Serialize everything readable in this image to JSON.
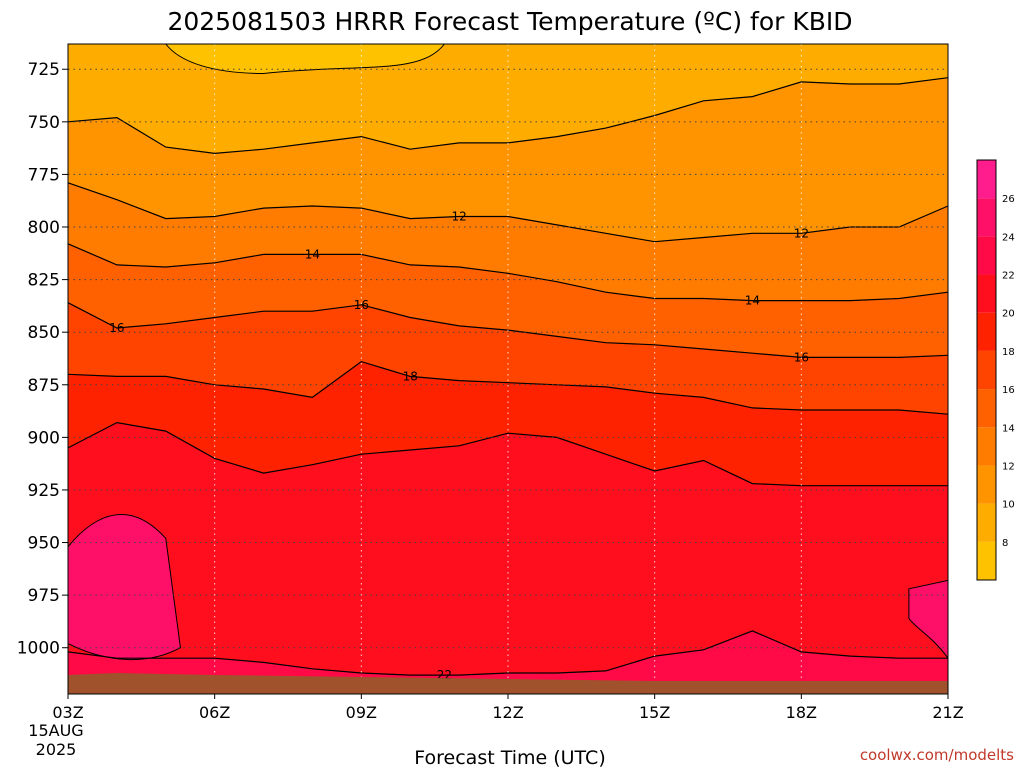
{
  "chart_data": {
    "type": "heatmap",
    "title": "2025081503 HRRR Forecast Temperature (ºC) for KBID",
    "xlabel": "Forecast Time (UTC)",
    "ylabel": "",
    "x_ticks": [
      "03Z",
      "06Z",
      "09Z",
      "12Z",
      "15Z",
      "18Z",
      "21Z"
    ],
    "x_start_label": [
      "15AUG",
      "2025"
    ],
    "y_ticks": [
      725,
      750,
      775,
      800,
      825,
      850,
      875,
      900,
      925,
      950,
      975,
      1000
    ],
    "y_axis": "pressure (hPa), inverted",
    "xlim": [
      "03Z",
      "21Z"
    ],
    "ylim": [
      713,
      1022
    ],
    "grid": true,
    "colorbar": {
      "ticks": [
        8,
        10,
        12,
        14,
        16,
        18,
        20,
        22,
        24,
        26
      ],
      "levels": [
        6,
        8,
        10,
        12,
        14,
        16,
        18,
        20,
        22,
        24,
        26,
        28
      ],
      "colors": [
        "#ffc200",
        "#ffac00",
        "#ff9400",
        "#ff7c00",
        "#ff6000",
        "#ff4400",
        "#ff2200",
        "#ff0e1e",
        "#ff0a46",
        "#ff1068",
        "#ff1c8c"
      ],
      "placement": "right"
    },
    "contours": [
      {
        "level": 10,
        "x_hours": [
          3,
          4,
          5,
          6,
          7,
          8,
          9,
          10,
          11,
          12,
          13,
          14,
          15,
          16,
          17,
          18,
          19,
          20,
          21
        ],
        "p": [
          750,
          748,
          762,
          765,
          763,
          760,
          757,
          763,
          760,
          760,
          757,
          753,
          747,
          740,
          738,
          731,
          732,
          732,
          729
        ]
      },
      {
        "level": 12,
        "x_hours": [
          3,
          4,
          5,
          6,
          7,
          8,
          9,
          10,
          11,
          12,
          13,
          14,
          15,
          16,
          17,
          18,
          19,
          20,
          21
        ],
        "p": [
          779,
          787,
          796,
          795,
          791,
          790,
          791,
          796,
          795,
          795,
          799,
          803,
          807,
          805,
          803,
          803,
          800,
          800,
          790
        ]
      },
      {
        "level": 14,
        "x_hours": [
          3,
          4,
          5,
          6,
          7,
          8,
          9,
          10,
          11,
          12,
          13,
          14,
          15,
          16,
          17,
          18,
          19,
          20,
          21
        ],
        "p": [
          808,
          818,
          819,
          817,
          813,
          813,
          813,
          818,
          819,
          822,
          826,
          831,
          834,
          834,
          835,
          835,
          835,
          834,
          831
        ]
      },
      {
        "level": 16,
        "x_hours": [
          3,
          4,
          5,
          6,
          7,
          8,
          9,
          10,
          11,
          12,
          13,
          14,
          15,
          16,
          17,
          18,
          19,
          20,
          21
        ],
        "p": [
          836,
          848,
          846,
          843,
          840,
          840,
          837,
          843,
          847,
          849,
          852,
          855,
          856,
          858,
          860,
          862,
          862,
          862,
          861
        ]
      },
      {
        "level": 18,
        "x_hours": [
          3,
          4,
          5,
          6,
          7,
          8,
          9,
          10,
          11,
          12,
          13,
          14,
          15,
          16,
          17,
          18,
          19,
          20,
          21
        ],
        "p": [
          870,
          871,
          871,
          875,
          877,
          881,
          864,
          871,
          873,
          874,
          875,
          876,
          879,
          881,
          886,
          887,
          887,
          887,
          889
        ]
      },
      {
        "level": 20,
        "x_hours": [
          3,
          4,
          5,
          6,
          7,
          8,
          9,
          10,
          11,
          12,
          13,
          14,
          15,
          16,
          17,
          18,
          19,
          20,
          21
        ],
        "p": [
          905,
          893,
          897,
          910,
          917,
          913,
          908,
          906,
          904,
          898,
          900,
          908,
          916,
          911,
          922,
          923,
          923,
          923,
          923
        ]
      },
      {
        "level": 22,
        "x_hours": [
          3,
          4,
          5,
          6,
          7,
          8,
          9,
          10,
          11,
          12,
          13,
          14,
          15,
          16,
          17,
          18,
          19,
          20,
          21
        ],
        "p": [
          1002,
          1005,
          1005,
          1005,
          1007,
          1010,
          1012,
          1013,
          1013,
          1012,
          1012,
          1011,
          1004,
          1001,
          992,
          1002,
          1004,
          1005,
          1005
        ]
      }
    ],
    "contour_labels": [
      {
        "text": "12",
        "x_hour": 11.0,
        "p": 795
      },
      {
        "text": "12",
        "x_hour": 18.0,
        "p": 803
      },
      {
        "text": "14",
        "x_hour": 8.0,
        "p": 813
      },
      {
        "text": "14",
        "x_hour": 17.0,
        "p": 835
      },
      {
        "text": "16",
        "x_hour": 4.0,
        "p": 848
      },
      {
        "text": "16",
        "x_hour": 9.0,
        "p": 837
      },
      {
        "text": "16",
        "x_hour": 18.0,
        "p": 862
      },
      {
        "text": "18",
        "x_hour": 10.0,
        "p": 871
      },
      {
        "text": "22",
        "x_hour": 10.7,
        "p": 1013
      }
    ]
  },
  "credit": "coolwx.com/modelts",
  "colors": {
    "contour": "#000000",
    "ground": "#a0522d",
    "grid": "#444444"
  }
}
